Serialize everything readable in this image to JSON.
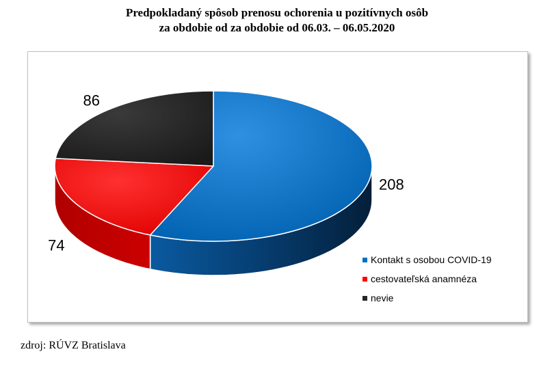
{
  "title": {
    "line1": "Predpokladaný spôsob prenosu ochorenia u pozitívnych osôb",
    "line2": "za obdobie od za obdobie od 06.03. – 06.05.2020"
  },
  "source": "zdroj: RÚVZ Bratislava",
  "chart_data": {
    "type": "pie",
    "style": "3d",
    "categories": [
      "Kontakt s osobou COVID-19",
      "cestovateľská anamnéza",
      "nevie"
    ],
    "values": [
      208,
      74,
      86
    ],
    "colors": [
      "#0070C0",
      "#FF0000",
      "#262626"
    ],
    "legend_position": "bottom-right",
    "data_labels": true
  }
}
